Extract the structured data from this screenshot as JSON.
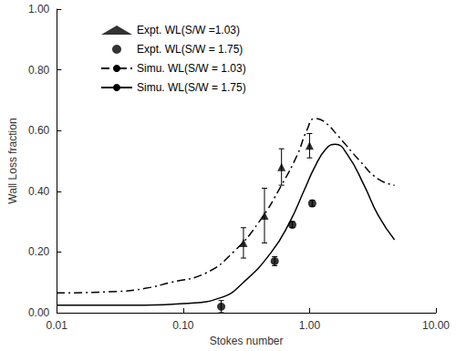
{
  "chart_data": {
    "type": "scatter",
    "x_label": "Stokes number",
    "y_label": "Wall Loss fraction",
    "log": "x",
    "grid": false,
    "legend": "top-left",
    "xlim": [
      0.01,
      10
    ],
    "xticks": [
      0.01,
      {
        "value": 0.1,
        "label": "0.10"
      },
      {
        "value": 1,
        "label": "1.00"
      },
      {
        "value": 10,
        "label": "10.00"
      }
    ],
    "ylim": [
      0,
      1
    ],
    "yticks": [
      {
        "value": 0,
        "label": "0.00"
      },
      {
        "value": 0.2,
        "label": "0.20"
      },
      {
        "value": 0.4,
        "label": "0.40"
      },
      {
        "value": 0.6,
        "label": "0.60"
      },
      {
        "value": 0.8,
        "label": "0.80"
      },
      {
        "value": 1,
        "label": "1.00"
      }
    ],
    "series": [
      {
        "name": "Expt. WL(S/W =1.03)",
        "type": "scatter",
        "marker": "triangle",
        "color": "#000000",
        "x": [
          0.3,
          0.44,
          0.6,
          1.0
        ],
        "values": [
          0.23,
          0.32,
          0.48,
          0.55
        ],
        "errors": [
          0.05,
          0.09,
          0.06,
          0.04
        ]
      },
      {
        "name": "Expt. WL(S/W = 1.75)",
        "type": "scatter",
        "marker": "circle",
        "color": "#000000",
        "x": [
          0.2,
          0.53,
          0.73,
          1.05
        ],
        "values": [
          0.02,
          0.17,
          0.29,
          0.36
        ],
        "errors": [
          0.02,
          0.015,
          0.01,
          0.01
        ]
      },
      {
        "name": "Simu. WL(S/W = 1.03)",
        "type": "line",
        "line_style": "dashdot",
        "color": "#000000",
        "x": [
          0.01,
          0.03,
          0.05,
          0.08,
          0.15,
          0.25,
          0.4,
          0.6,
          0.8,
          0.95,
          1.1,
          1.3,
          1.7,
          2.5,
          3.5,
          4.7
        ],
        "values": [
          0.065,
          0.07,
          0.08,
          0.1,
          0.13,
          0.2,
          0.3,
          0.42,
          0.52,
          0.6,
          0.64,
          0.63,
          0.58,
          0.5,
          0.44,
          0.42
        ]
      },
      {
        "name": "Simu. WL(S/W = 1.75)",
        "type": "line",
        "line_style": "solid",
        "color": "#000000",
        "x": [
          0.01,
          0.05,
          0.1,
          0.2,
          0.3,
          0.5,
          0.7,
          0.9,
          1.1,
          1.35,
          1.6,
          2.0,
          2.7,
          3.5,
          4.7
        ],
        "values": [
          0.025,
          0.025,
          0.03,
          0.05,
          0.1,
          0.2,
          0.3,
          0.4,
          0.48,
          0.54,
          0.555,
          0.52,
          0.42,
          0.32,
          0.24
        ]
      }
    ]
  }
}
